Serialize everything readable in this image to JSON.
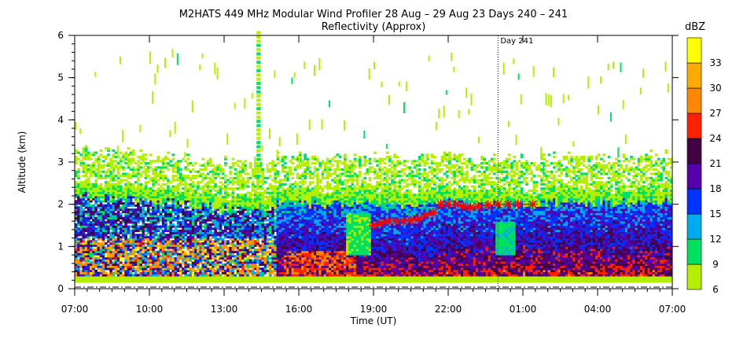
{
  "chart_data": {
    "type": "heatmap",
    "title": "M2HATS 449 MHz Modular Wind Profiler  28 Aug – 29 Aug 23 Days 240 – 241",
    "subtitle": "Reflectivity (Approx)",
    "xlabel": "Time (UT)",
    "ylabel": "Altitude (km)",
    "x_ticks": [
      "07:00",
      "10:00",
      "13:00",
      "16:00",
      "19:00",
      "22:00",
      "01:00",
      "04:00",
      "07:00"
    ],
    "x_range_hours": [
      0,
      24
    ],
    "y_ticks": [
      "0",
      "1",
      "2",
      "3",
      "4",
      "5",
      "6"
    ],
    "ylim": [
      0,
      6
    ],
    "day_marker": {
      "label": "Day 241",
      "hour": 17
    },
    "colorbar": {
      "unit": "dBZ",
      "ticks": [
        "6",
        "9",
        "12",
        "15",
        "18",
        "21",
        "24",
        "27",
        "30",
        "33"
      ],
      "levels": [
        {
          "min": 6,
          "color": "#b4ee00"
        },
        {
          "min": 9,
          "color": "#00e060"
        },
        {
          "min": 12,
          "color": "#00aaee"
        },
        {
          "min": 15,
          "color": "#0033ff"
        },
        {
          "min": 18,
          "color": "#5500aa"
        },
        {
          "min": 21,
          "color": "#440044"
        },
        {
          "min": 24,
          "color": "#ff2200"
        },
        {
          "min": 27,
          "color": "#ff8800"
        },
        {
          "min": 30,
          "color": "#ffaa00"
        },
        {
          "min": 33,
          "color": "#ffff00"
        }
      ]
    },
    "marker_series": {
      "symbol": "asterisk",
      "color": "#ff0000",
      "points": [
        {
          "t": 12.0,
          "h": 1.5
        },
        {
          "t": 12.3,
          "h": 1.55
        },
        {
          "t": 12.6,
          "h": 1.6
        },
        {
          "t": 12.9,
          "h": 1.6
        },
        {
          "t": 13.2,
          "h": 1.6
        },
        {
          "t": 13.5,
          "h": 1.62
        },
        {
          "t": 13.8,
          "h": 1.65
        },
        {
          "t": 14.1,
          "h": 1.75
        },
        {
          "t": 14.4,
          "h": 1.8
        },
        {
          "t": 14.7,
          "h": 2.0
        },
        {
          "t": 15.0,
          "h": 2.0
        },
        {
          "t": 15.3,
          "h": 2.0
        },
        {
          "t": 15.6,
          "h": 1.95
        },
        {
          "t": 15.9,
          "h": 1.92
        },
        {
          "t": 16.2,
          "h": 1.95
        },
        {
          "t": 16.6,
          "h": 1.98
        },
        {
          "t": 17.0,
          "h": 2.0
        },
        {
          "t": 17.4,
          "h": 2.0
        },
        {
          "t": 17.8,
          "h": 2.0
        },
        {
          "t": 18.4,
          "h": 2.0
        }
      ]
    }
  }
}
